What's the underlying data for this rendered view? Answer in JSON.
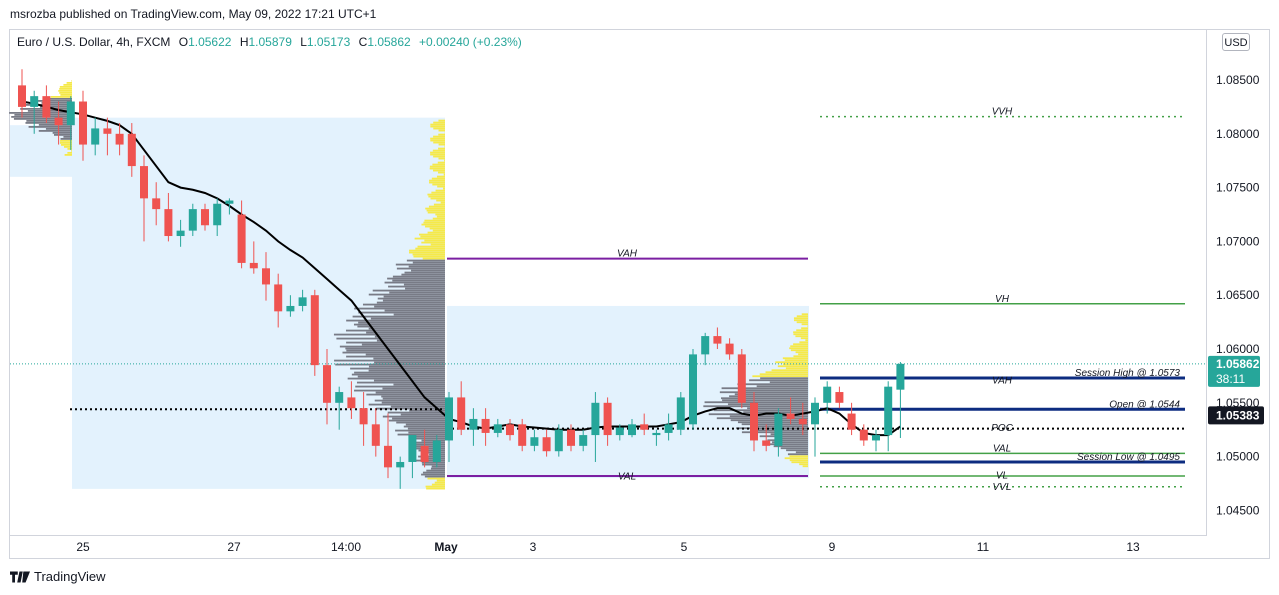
{
  "caption": "msrozba published on TradingView.com, May 09, 2022 17:21 UTC+1",
  "legend": {
    "symbol": "Euro / U.S. Dollar, 4h, FXCM",
    "open_label": "O",
    "open": "1.05622",
    "high_label": "H",
    "high": "1.05879",
    "low_label": "L",
    "low": "1.05173",
    "close_label": "C",
    "close": "1.05862",
    "change": "+0.00240 (+0.23%)"
  },
  "currency": "USD",
  "price_ticks": [
    "1.08500",
    "1.08000",
    "1.07500",
    "1.07000",
    "1.06500",
    "1.06000",
    "1.05500",
    "1.05000",
    "1.04500"
  ],
  "time_ticks": [
    "25",
    "27",
    "14:00",
    "May",
    "3",
    "5",
    "9",
    "11",
    "13"
  ],
  "last_price": {
    "value": "1.05862",
    "countdown": "38:11"
  },
  "crosshair_price": "1.05383",
  "levels": {
    "vvh": "VVH",
    "vah1": "VAH",
    "vh": "VH",
    "vah2": "VAH",
    "session_high": "Session High @ 1.0573",
    "open": "Open @ 1.0544",
    "poc": "POC",
    "val1": "VAL",
    "val2": "VAL",
    "session_low": "Session Low @ 1.0495",
    "vl": "VL",
    "vvl": "VVL"
  },
  "footer": "TradingView",
  "colors": {
    "up": "#26a69a",
    "down": "#ef5350",
    "navy": "#0d2c80",
    "purple": "#7b1fa2",
    "green": "#43a047",
    "yellow": "#f5e94a",
    "grey": "#787b86",
    "range": "#e3f2fd"
  },
  "chart_data": {
    "type": "candlestick",
    "x": [
      "Apr 21 12:00",
      "Apr 21 16:00",
      "Apr 21 20:00",
      "Apr 22 00:00",
      "Apr 22 04:00",
      "Apr 22 08:00",
      "Apr 22 12:00",
      "Apr 22 16:00",
      "Apr 22 20:00",
      "Apr 25 00:00",
      "Apr 25 04:00",
      "Apr 25 08:00",
      "Apr 25 12:00",
      "Apr 25 16:00",
      "Apr 25 20:00",
      "Apr 26 00:00",
      "Apr 26 04:00",
      "Apr 26 08:00",
      "Apr 26 12:00",
      "Apr 26 16:00",
      "Apr 26 20:00",
      "Apr 27 00:00",
      "Apr 27 04:00",
      "Apr 27 08:00",
      "Apr 27 12:00",
      "Apr 27 16:00",
      "Apr 27 20:00",
      "Apr 28 00:00",
      "Apr 28 04:00",
      "Apr 28 08:00",
      "Apr 28 12:00",
      "Apr 28 16:00",
      "Apr 28 20:00",
      "Apr 29 00:00",
      "Apr 29 04:00",
      "Apr 29 08:00",
      "Apr 29 12:00",
      "Apr 29 16:00",
      "May 2 00:00",
      "May 2 04:00",
      "May 2 08:00",
      "May 2 12:00",
      "May 2 16:00",
      "May 2 20:00",
      "May 3 00:00",
      "May 3 04:00",
      "May 3 08:00",
      "May 3 12:00",
      "May 3 16:00",
      "May 3 20:00",
      "May 4 00:00",
      "May 4 04:00",
      "May 4 08:00",
      "May 4 12:00",
      "May 4 16:00",
      "May 4 20:00",
      "May 5 00:00",
      "May 5 04:00",
      "May 5 08:00",
      "May 5 12:00",
      "May 5 16:00",
      "May 5 20:00",
      "May 6 00:00",
      "May 6 04:00",
      "May 6 08:00",
      "May 6 12:00",
      "May 6 16:00",
      "May 6 20:00",
      "May 9 00:00",
      "May 9 04:00",
      "May 9 08:00",
      "May 9 12:00",
      "May 9 16:00"
    ],
    "ohlc": [
      [
        1.0845,
        1.086,
        1.0815,
        1.0825
      ],
      [
        1.0825,
        1.084,
        1.08,
        1.0835
      ],
      [
        1.0835,
        1.0845,
        1.081,
        1.0815
      ],
      [
        1.0815,
        1.083,
        1.079,
        1.0808
      ],
      [
        1.0808,
        1.0835,
        1.0785,
        1.083
      ],
      [
        1.083,
        1.084,
        1.0775,
        1.079
      ],
      [
        1.079,
        1.0815,
        1.078,
        1.0805
      ],
      [
        1.0805,
        1.0815,
        1.078,
        1.08
      ],
      [
        1.08,
        1.081,
        1.078,
        1.079
      ],
      [
        1.08,
        1.081,
        1.076,
        1.077
      ],
      [
        1.077,
        1.078,
        1.07,
        1.074
      ],
      [
        1.074,
        1.0755,
        1.0715,
        1.073
      ],
      [
        1.073,
        1.0745,
        1.07,
        1.0705
      ],
      [
        1.0705,
        1.072,
        1.0695,
        1.071
      ],
      [
        1.071,
        1.0735,
        1.0705,
        1.073
      ],
      [
        1.073,
        1.0735,
        1.071,
        1.0715
      ],
      [
        1.0715,
        1.074,
        1.0705,
        1.0735
      ],
      [
        1.0735,
        1.074,
        1.0725,
        1.0738
      ],
      [
        1.0725,
        1.0738,
        1.0675,
        1.068
      ],
      [
        1.068,
        1.07,
        1.067,
        1.0675
      ],
      [
        1.0675,
        1.069,
        1.0645,
        1.066
      ],
      [
        1.066,
        1.067,
        1.062,
        1.0635
      ],
      [
        1.0635,
        1.065,
        1.063,
        1.064
      ],
      [
        1.064,
        1.0655,
        1.0635,
        1.0648
      ],
      [
        1.065,
        1.0655,
        1.0575,
        1.0585
      ],
      [
        1.0585,
        1.06,
        1.053,
        1.055
      ],
      [
        1.055,
        1.0565,
        1.0525,
        1.056
      ],
      [
        1.0555,
        1.057,
        1.0535,
        1.0545
      ],
      [
        1.0545,
        1.056,
        1.051,
        1.053
      ],
      [
        1.053,
        1.0545,
        1.05,
        1.051
      ],
      [
        1.051,
        1.054,
        1.048,
        1.049
      ],
      [
        1.049,
        1.05,
        1.047,
        1.0495
      ],
      [
        1.0495,
        1.052,
        1.048,
        1.052
      ],
      [
        1.051,
        1.0525,
        1.049,
        1.0495
      ],
      [
        1.0495,
        1.052,
        1.049,
        1.0515
      ],
      [
        1.0515,
        1.056,
        1.0495,
        1.0555
      ],
      [
        1.0555,
        1.057,
        1.052,
        1.0525
      ],
      [
        1.0525,
        1.0545,
        1.051,
        1.0535
      ],
      [
        1.0535,
        1.0545,
        1.051,
        1.0522
      ],
      [
        1.0522,
        1.0535,
        1.0518,
        1.053
      ],
      [
        1.053,
        1.0535,
        1.0515,
        1.052
      ],
      [
        1.053,
        1.0535,
        1.0505,
        1.051
      ],
      [
        1.051,
        1.0525,
        1.0505,
        1.0518
      ],
      [
        1.0518,
        1.0525,
        1.05,
        1.0505
      ],
      [
        1.0505,
        1.053,
        1.05,
        1.0525
      ],
      [
        1.0525,
        1.053,
        1.0505,
        1.051
      ],
      [
        1.051,
        1.0525,
        1.0505,
        1.052
      ],
      [
        1.052,
        1.056,
        1.0495,
        1.055
      ],
      [
        1.055,
        1.0555,
        1.051,
        1.052
      ],
      [
        1.052,
        1.053,
        1.0515,
        1.0527
      ],
      [
        1.052,
        1.0535,
        1.0518,
        1.053
      ],
      [
        1.053,
        1.054,
        1.052,
        1.0525
      ],
      [
        1.052,
        1.0525,
        1.051,
        1.0522
      ],
      [
        1.0522,
        1.054,
        1.0515,
        1.053
      ],
      [
        1.0525,
        1.056,
        1.052,
        1.0555
      ],
      [
        1.053,
        1.06,
        1.0525,
        1.0595
      ],
      [
        1.0595,
        1.0615,
        1.0585,
        1.0612
      ],
      [
        1.0612,
        1.062,
        1.06,
        1.0605
      ],
      [
        1.0605,
        1.061,
        1.059,
        1.0595
      ],
      [
        1.0595,
        1.06,
        1.0545,
        1.055
      ],
      [
        1.055,
        1.056,
        1.0505,
        1.0515
      ],
      [
        1.0515,
        1.053,
        1.0505,
        1.051
      ],
      [
        1.051,
        1.0545,
        1.05,
        1.054
      ],
      [
        1.054,
        1.0555,
        1.053,
        1.0535
      ],
      [
        1.0535,
        1.055,
        1.052,
        1.053
      ],
      [
        1.053,
        1.0555,
        1.05,
        1.055
      ],
      [
        1.055,
        1.057,
        1.054,
        1.0565
      ],
      [
        1.056,
        1.0565,
        1.0545,
        1.055
      ],
      [
        1.054,
        1.055,
        1.052,
        1.0525
      ],
      [
        1.0525,
        1.053,
        1.051,
        1.0515
      ],
      [
        1.0515,
        1.0525,
        1.0505,
        1.052
      ],
      [
        1.052,
        1.057,
        1.0505,
        1.0565
      ],
      [
        1.05622,
        1.05879,
        1.05173,
        1.05862
      ]
    ],
    "ylim": [
      1.0425,
      1.0885
    ],
    "session_levels": {
      "vvh": 1.0816,
      "vh": 1.0642,
      "session_high": 1.0573,
      "open": 1.0544,
      "poc": 1.0526,
      "val": 1.0503,
      "session_low": 1.0495,
      "vl": 1.0482,
      "vvl": 1.0472
    },
    "weekly_value_area": {
      "vah": 1.0684,
      "val": 1.0482
    },
    "moving_average": [
      1.083,
      1.0828,
      1.0825,
      1.0822,
      1.082,
      1.0818,
      1.0815,
      1.0812,
      1.0808,
      1.08,
      1.0785,
      1.077,
      1.0755,
      1.075,
      1.0748,
      1.0745,
      1.074,
      1.0733,
      1.0725,
      1.0718,
      1.071,
      1.07,
      1.0692,
      1.0685,
      1.0675,
      1.0665,
      1.0655,
      1.0645,
      1.063,
      1.0615,
      1.06,
      1.0585,
      1.057,
      1.0555,
      1.0545,
      1.0535,
      1.0532,
      1.0528,
      1.0526,
      1.0528,
      1.053,
      1.0528,
      1.0527,
      1.0526,
      1.0525,
      1.0525,
      1.0525,
      1.0527,
      1.0528,
      1.0528,
      1.0528,
      1.0528,
      1.0528,
      1.053,
      1.0532,
      1.0538,
      1.0542,
      1.0545,
      1.0545,
      1.054,
      1.0538,
      1.054,
      1.054,
      1.0538,
      1.054,
      1.0542,
      1.0545,
      1.054,
      1.053,
      1.0522,
      1.052,
      1.052,
      1.0528
    ]
  }
}
